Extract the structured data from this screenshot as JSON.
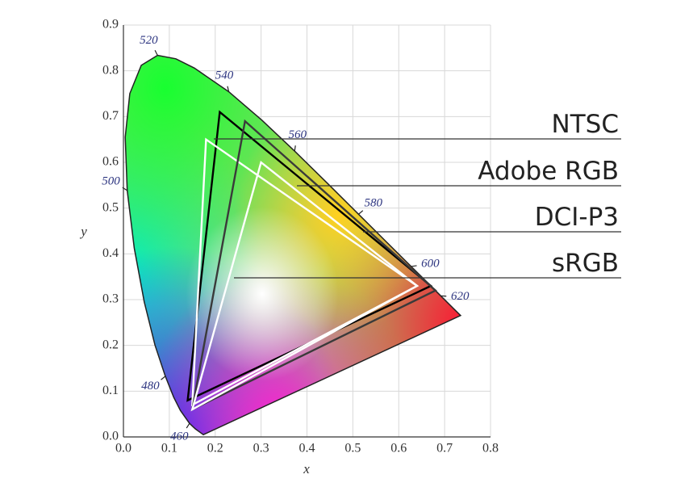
{
  "chart_data": {
    "type": "chromaticity",
    "x_label": "x",
    "y_label": "y",
    "xlim": [
      0,
      0.8
    ],
    "ylim": [
      0,
      0.9
    ],
    "xticks": [
      {
        "value": 0,
        "label": "0.0"
      },
      0.1,
      0.2,
      0.3,
      0.4,
      0.5,
      0.6,
      0.7,
      0.8
    ],
    "yticks": [
      {
        "value": 0,
        "label": "0.0"
      },
      0.1,
      0.2,
      0.3,
      0.4,
      0.5,
      0.6,
      0.7,
      0.8,
      0.9
    ],
    "grid": true,
    "locus": {
      "x": [
        0.1741,
        0.1566,
        0.144,
        0.1241,
        0.1096,
        0.0913,
        0.0687,
        0.0454,
        0.0235,
        0.0082,
        0.0039,
        0.0139,
        0.0389,
        0.0743,
        0.1142,
        0.1547,
        0.2296,
        0.3016,
        0.3731,
        0.4441,
        0.5125,
        0.5752,
        0.627,
        0.6658,
        0.6915,
        0.719,
        0.7347
      ],
      "y": [
        0.005,
        0.0177,
        0.0297,
        0.0578,
        0.0868,
        0.1327,
        0.2007,
        0.295,
        0.4127,
        0.5384,
        0.6548,
        0.7502,
        0.812,
        0.8338,
        0.8262,
        0.8059,
        0.7543,
        0.6923,
        0.6245,
        0.5547,
        0.4866,
        0.4242,
        0.3725,
        0.334,
        0.3083,
        0.2809,
        0.2653
      ],
      "labels": [
        null,
        null,
        460,
        null,
        null,
        480,
        null,
        null,
        null,
        500,
        null,
        null,
        null,
        520,
        null,
        null,
        540,
        null,
        560,
        null,
        580,
        null,
        600,
        null,
        620,
        null,
        null
      ]
    },
    "series": [
      {
        "name": "NTSC",
        "color": "#000000",
        "x": [
          0.67,
          0.21,
          0.14
        ],
        "y": [
          0.33,
          0.71,
          0.08
        ]
      },
      {
        "name": "Adobe RGB",
        "color": "#ffffff",
        "x": [
          0.64,
          0.18,
          0.15
        ],
        "y": [
          0.33,
          0.65,
          0.07
        ]
      },
      {
        "name": "DCI-P3",
        "color": "#3a3a3a",
        "x": [
          0.68,
          0.265,
          0.15
        ],
        "y": [
          0.32,
          0.69,
          0.06
        ]
      },
      {
        "name": "sRGB",
        "color": "#ffffff",
        "x": [
          0.64,
          0.3,
          0.15
        ],
        "y": [
          0.33,
          0.6,
          0.06
        ]
      }
    ]
  }
}
